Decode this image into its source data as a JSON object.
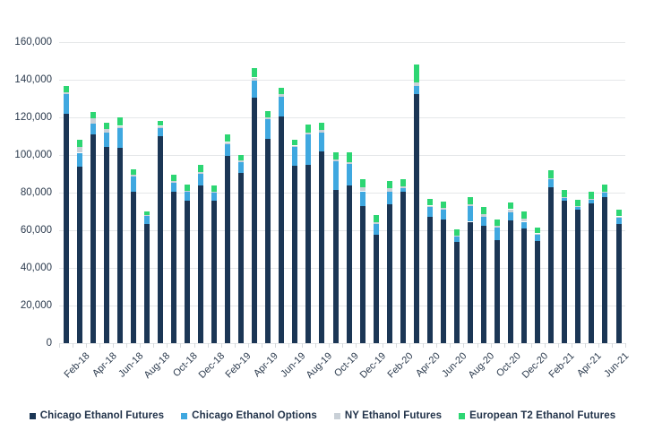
{
  "chart_data": {
    "type": "bar",
    "stacked": true,
    "title": "",
    "categories": [
      "Jan-18",
      "Feb-18",
      "Mar-18",
      "Apr-18",
      "May-18",
      "Jun-18",
      "Jul-18",
      "Aug-18",
      "Sep-18",
      "Oct-18",
      "Nov-18",
      "Dec-18",
      "Jan-19",
      "Feb-19",
      "Mar-19",
      "Apr-19",
      "May-19",
      "Jun-19",
      "Jul-19",
      "Aug-19",
      "Sep-19",
      "Oct-19",
      "Nov-19",
      "Dec-19",
      "Jan-20",
      "Feb-20",
      "Mar-20",
      "Apr-20",
      "May-20",
      "Jun-20",
      "Jul-20",
      "Aug-20",
      "Sep-20",
      "Oct-20",
      "Nov-20",
      "Dec-20",
      "Jan-21",
      "Feb-21",
      "Mar-21",
      "Apr-21",
      "May-21",
      "Jun-21"
    ],
    "xlabel_every": 2,
    "xlabel_visible": [
      "Feb-18",
      "Apr-18",
      "Jun-18",
      "Aug-18",
      "Oct-18",
      "Dec-18",
      "Feb-19",
      "Apr-19",
      "Jun-19",
      "Aug-19",
      "Oct-19",
      "Dec-19",
      "Feb-20",
      "Apr-20",
      "Jun-20",
      "Aug-20",
      "Oct-20",
      "Dec-20",
      "Feb-21",
      "Apr-21",
      "Jun-21"
    ],
    "series": [
      {
        "name": "Chicago Ethanol Futures",
        "color": "#1b3655",
        "values": [
          122000,
          94000,
          111000,
          104400,
          103600,
          80600,
          63500,
          110000,
          80700,
          75600,
          83800,
          75900,
          99700,
          90500,
          130600,
          108400,
          120300,
          94200,
          94600,
          102100,
          81400,
          83800,
          73000,
          57600,
          73800,
          80700,
          132200,
          67100,
          65600,
          54000,
          64500,
          62400,
          54900,
          65100,
          60800,
          54500,
          83000,
          75600,
          70800,
          74300,
          77800,
          63500
        ]
      },
      {
        "name": "Chicago Ethanol Options",
        "color": "#3fa8e0",
        "values": [
          10200,
          7200,
          5800,
          7600,
          10600,
          8100,
          4000,
          4500,
          4700,
          4700,
          6100,
          4000,
          5900,
          5500,
          9100,
          10600,
          10800,
          10000,
          16200,
          10000,
          15400,
          11400,
          7700,
          5900,
          6500,
          1900,
          4300,
          5100,
          5500,
          2800,
          8200,
          4700,
          6700,
          4400,
          3700,
          3100,
          4000,
          1800,
          1600,
          1900,
          2100,
          3400
        ]
      },
      {
        "name": "NY Ethanol Futures",
        "color": "#c9d0d7",
        "values": [
          1300,
          3200,
          2700,
          1900,
          1300,
          800,
          500,
          1000,
          700,
          800,
          1100,
          800,
          1300,
          1000,
          1500,
          1000,
          1200,
          800,
          1300,
          1100,
          800,
          1000,
          2300,
          700,
          2100,
          700,
          2100,
          900,
          800,
          500,
          1200,
          1600,
          600,
          1700,
          1500,
          700,
          800,
          400,
          600,
          400,
          400,
          500
        ]
      },
      {
        "name": "European T2 Ethanol Futures",
        "color": "#2dd673",
        "values": [
          3100,
          3600,
          3600,
          3500,
          4300,
          3000,
          2000,
          2500,
          3300,
          3200,
          3600,
          3100,
          4200,
          3000,
          4800,
          3500,
          3400,
          3000,
          4300,
          3900,
          3700,
          5400,
          4000,
          3700,
          3800,
          3700,
          9500,
          3600,
          3200,
          3000,
          3600,
          3500,
          3400,
          3400,
          3800,
          3300,
          4000,
          3600,
          3200,
          4100,
          3800,
          3700
        ]
      }
    ],
    "ylim": [
      0,
      160000
    ],
    "ytick_step": 20000,
    "ytick_labels": [
      "0",
      "20,000",
      "40,000",
      "60,000",
      "80,000",
      "100,000",
      "120,000",
      "140,000",
      "160,000"
    ],
    "grid": true,
    "legend_position": "bottom"
  },
  "colors": {
    "background": "#ffffff",
    "gridline": "#e5e7e9",
    "tick": "#d7dadd",
    "axis_text": "#2b3a4d",
    "legend_text": "#22334a"
  }
}
